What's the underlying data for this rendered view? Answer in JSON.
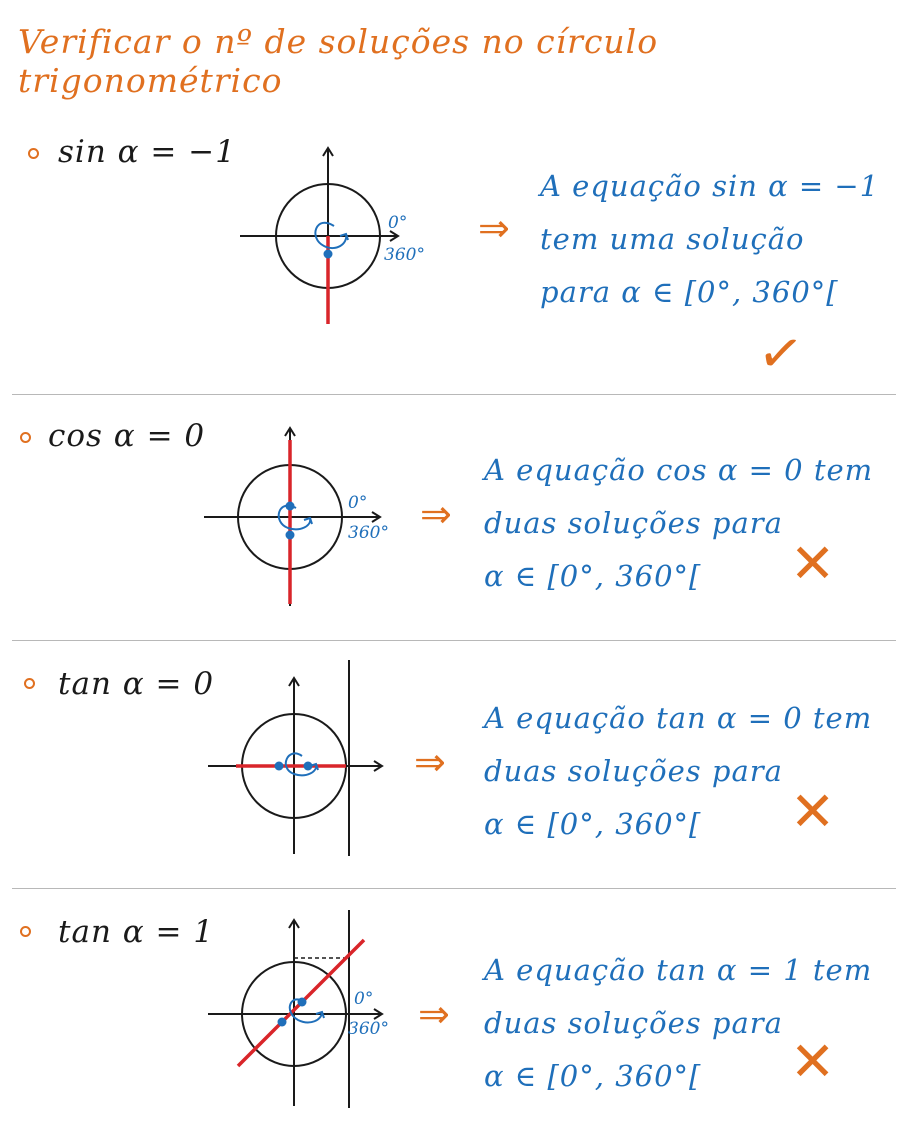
{
  "title": "Verificar o nº de soluções no círculo trigonométrico",
  "angle_labels": {
    "start": "0°",
    "end": "360°"
  },
  "sections": [
    {
      "equation": "sin α = −1",
      "conclusion_lines": [
        "A equação sin α = −1",
        "tem uma solução",
        "para α ∈ [0°, 360°["
      ],
      "mark": "✓"
    },
    {
      "equation": "cos α = 0",
      "conclusion_lines": [
        "A equação cos α = 0 tem",
        "duas soluções para",
        "α ∈ [0°, 360°["
      ],
      "mark": "✕"
    },
    {
      "equation": "tan α = 0",
      "conclusion_lines": [
        "A equação tan α = 0 tem",
        "duas soluções para",
        "α ∈ [0°, 360°["
      ],
      "mark": "✕"
    },
    {
      "equation": "tan α = 1",
      "conclusion_lines": [
        "A equação tan α = 1 tem",
        "duas soluções para",
        "α ∈ [0°, 360°["
      ],
      "mark": "✕"
    }
  ],
  "arrow_symbol": "⇒",
  "colors": {
    "title": "#e07020",
    "conclusion": "#1f6fba",
    "highlight": "#d9252a",
    "ink": "#1a1a1a",
    "mark": "#e07020"
  }
}
